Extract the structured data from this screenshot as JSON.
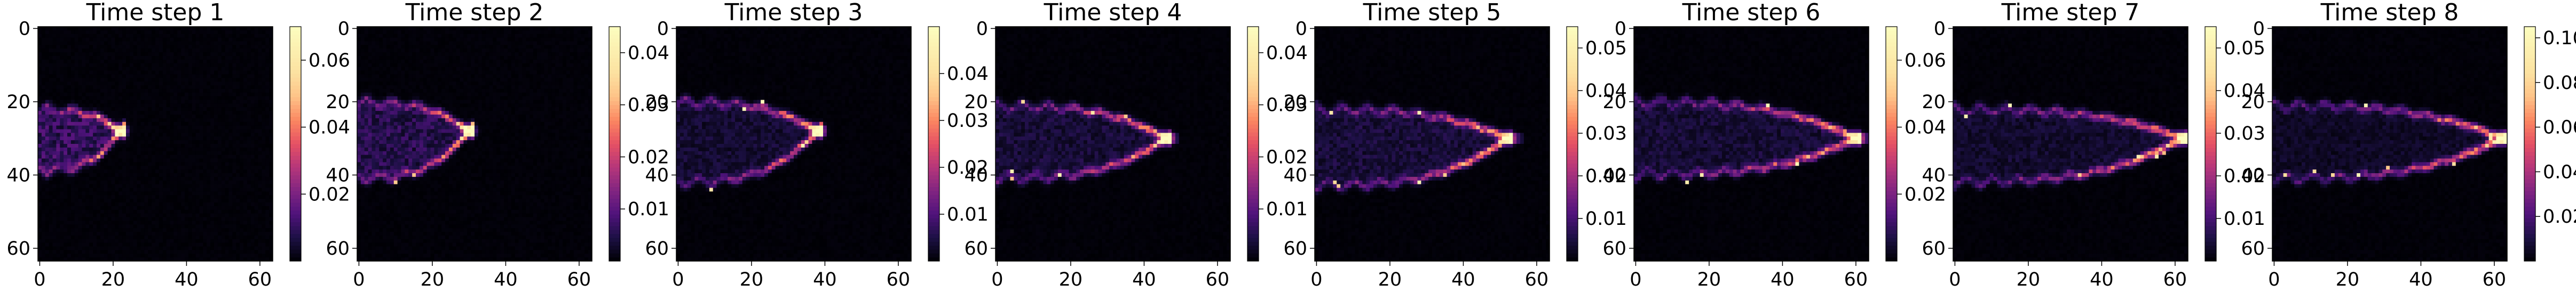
{
  "figure": {
    "background": "#ffffff",
    "colormap": "magma",
    "panel_count": 8
  },
  "chart_data": [
    {
      "type": "heatmap",
      "title": "Time step 1",
      "grid_size": [
        64,
        64
      ],
      "xlim": [
        0,
        63
      ],
      "ylim": [
        63,
        0
      ],
      "xticks": [
        "0",
        "20",
        "40",
        "60"
      ],
      "yticks": [
        "0",
        "20",
        "40",
        "60"
      ],
      "colorbar": {
        "min": 0.0,
        "max": 0.07,
        "ticks": [
          "0.02",
          "0.04",
          "0.06"
        ]
      },
      "feature": {
        "tip_x": 22,
        "upper_y": 22,
        "lower_y": 39,
        "head_y": 28,
        "peak": 0.065,
        "inner": 0.012,
        "trail_len": 0
      }
    },
    {
      "type": "heatmap",
      "title": "Time step 2",
      "grid_size": [
        64,
        64
      ],
      "xlim": [
        0,
        63
      ],
      "ylim": [
        63,
        0
      ],
      "xticks": [
        "0",
        "20",
        "40",
        "60"
      ],
      "yticks": [
        "0",
        "20",
        "40",
        "60"
      ],
      "colorbar": {
        "min": 0.0,
        "max": 0.045,
        "ticks": [
          "0.01",
          "0.02",
          "0.03",
          "0.04"
        ]
      },
      "feature": {
        "tip_x": 30,
        "upper_y": 20,
        "lower_y": 41,
        "head_y": 28,
        "peak": 0.042,
        "inner": 0.006,
        "trail_len": 0
      }
    },
    {
      "type": "heatmap",
      "title": "Time step 3",
      "grid_size": [
        64,
        64
      ],
      "xlim": [
        0,
        63
      ],
      "ylim": [
        63,
        0
      ],
      "xticks": [
        "0",
        "20",
        "40",
        "60"
      ],
      "yticks": [
        "0",
        "20",
        "40",
        "60"
      ],
      "colorbar": {
        "min": 0.0,
        "max": 0.05,
        "ticks": [
          "0.01",
          "0.02",
          "0.03",
          "0.04"
        ]
      },
      "feature": {
        "tip_x": 38,
        "upper_y": 20,
        "lower_y": 42,
        "head_y": 28,
        "peak": 0.048,
        "inner": 0.004,
        "trail_len": 2
      }
    },
    {
      "type": "heatmap",
      "title": "Time step 4",
      "grid_size": [
        64,
        64
      ],
      "xlim": [
        0,
        63
      ],
      "ylim": [
        63,
        0
      ],
      "xticks": [
        "0",
        "20",
        "40",
        "60"
      ],
      "yticks": [
        "0",
        "20",
        "40",
        "60"
      ],
      "colorbar": {
        "min": 0.0,
        "max": 0.045,
        "ticks": [
          "0.01",
          "0.02",
          "0.03",
          "0.04"
        ]
      },
      "feature": {
        "tip_x": 46,
        "upper_y": 21,
        "lower_y": 41,
        "head_y": 30,
        "peak": 0.043,
        "inner": 0.004,
        "trail_len": 3
      }
    },
    {
      "type": "heatmap",
      "title": "Time step 5",
      "grid_size": [
        64,
        64
      ],
      "xlim": [
        0,
        63
      ],
      "ylim": [
        63,
        0
      ],
      "xticks": [
        "0",
        "20",
        "40",
        "60"
      ],
      "yticks": [
        "0",
        "20",
        "40",
        "60"
      ],
      "colorbar": {
        "min": 0.0,
        "max": 0.055,
        "ticks": [
          "0.01",
          "0.02",
          "0.03",
          "0.04",
          "0.05"
        ]
      },
      "feature": {
        "tip_x": 52,
        "upper_y": 22,
        "lower_y": 43,
        "head_y": 30,
        "peak": 0.052,
        "inner": 0.005,
        "trail_len": 4
      }
    },
    {
      "type": "heatmap",
      "title": "Time step 6",
      "grid_size": [
        64,
        64
      ],
      "xlim": [
        0,
        63
      ],
      "ylim": [
        63,
        0
      ],
      "xticks": [
        "0",
        "20",
        "40",
        "60"
      ],
      "yticks": [
        "0",
        "20",
        "40",
        "60"
      ],
      "colorbar": {
        "min": 0.0,
        "max": 0.07,
        "ticks": [
          "0.02",
          "0.04",
          "0.06"
        ]
      },
      "feature": {
        "tip_x": 60,
        "upper_y": 20,
        "lower_y": 40,
        "head_y": 30,
        "peak": 0.068,
        "inner": 0.006,
        "trail_len": 4
      }
    },
    {
      "type": "heatmap",
      "title": "Time step 7",
      "grid_size": [
        64,
        64
      ],
      "xlim": [
        0,
        63
      ],
      "ylim": [
        63,
        0
      ],
      "xticks": [
        "0",
        "20",
        "40",
        "60"
      ],
      "yticks": [
        "0",
        "20",
        "40",
        "60"
      ],
      "colorbar": {
        "min": 0.0,
        "max": 0.055,
        "ticks": [
          "0.01",
          "0.02",
          "0.03",
          "0.04",
          "0.05"
        ]
      },
      "feature": {
        "tip_x": 62,
        "upper_y": 22,
        "lower_y": 42,
        "head_y": 30,
        "peak": 0.053,
        "inner": 0.004,
        "trail_len": 5
      }
    },
    {
      "type": "heatmap",
      "title": "Time step 8",
      "grid_size": [
        64,
        64
      ],
      "xlim": [
        0,
        63
      ],
      "ylim": [
        63,
        0
      ],
      "xticks": [
        "0",
        "20",
        "40",
        "60"
      ],
      "yticks": [
        "0",
        "20",
        "40",
        "60"
      ],
      "colorbar": {
        "min": 0.0,
        "max": 0.105,
        "ticks": [
          "0.02",
          "0.04",
          "0.06",
          "0.08",
          "0.10"
        ]
      },
      "feature": {
        "tip_x": 62,
        "upper_y": 21,
        "lower_y": 41,
        "head_y": 30,
        "peak": 0.1,
        "inner": 0.006,
        "trail_len": 5
      }
    }
  ]
}
